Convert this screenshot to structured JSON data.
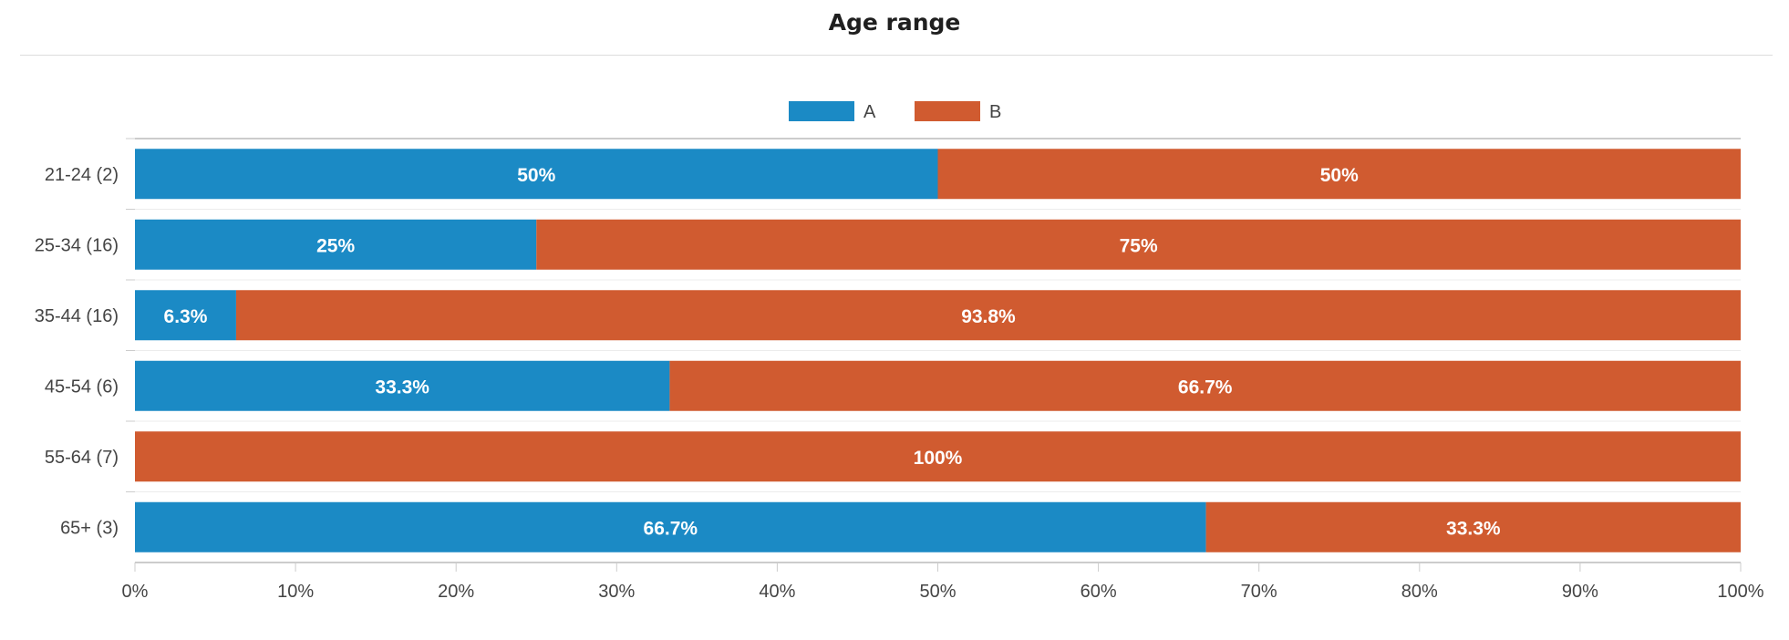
{
  "chart_data": {
    "type": "bar",
    "orientation": "horizontal",
    "stacked": "percent",
    "title": "Age range",
    "categories": [
      "21-24 (2)",
      "25-34 (16)",
      "35-44 (16)",
      "45-54 (6)",
      "55-64 (7)",
      "65+ (3)"
    ],
    "series": [
      {
        "name": "A",
        "color": "#1b8ac5",
        "values": [
          50,
          25,
          6.3,
          33.3,
          0,
          66.7
        ],
        "labels": [
          "50%",
          "25%",
          "6.3%",
          "33.3%",
          "",
          "66.7%"
        ]
      },
      {
        "name": "B",
        "color": "#d05b30",
        "values": [
          50,
          75,
          93.8,
          66.7,
          100,
          33.3
        ],
        "labels": [
          "50%",
          "75%",
          "93.8%",
          "66.7%",
          "100%",
          "33.3%"
        ]
      }
    ],
    "x_ticks": [
      "0%",
      "10%",
      "20%",
      "30%",
      "40%",
      "50%",
      "60%",
      "70%",
      "80%",
      "90%",
      "100%"
    ],
    "xlim": [
      0,
      100
    ],
    "legend_position": "top-center",
    "grid": false
  }
}
